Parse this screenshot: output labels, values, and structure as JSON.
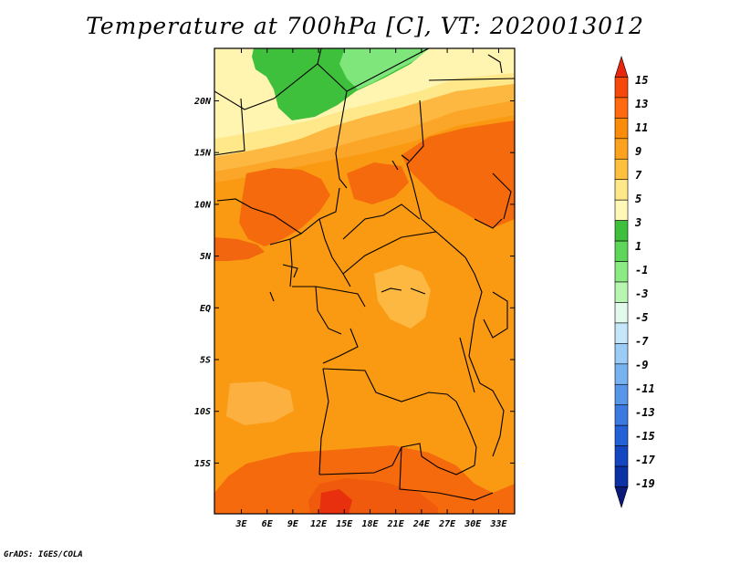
{
  "title": "Temperature at 700hPa [C], VT: 2020013012",
  "credit": "GrADS: IGES/COLA",
  "map": {
    "lat_labels": [
      "20N",
      "15N",
      "10N",
      "5N",
      "EQ",
      "5S",
      "10S",
      "15S"
    ],
    "lon_labels": [
      "3E",
      "6E",
      "9E",
      "12E",
      "15E",
      "18E",
      "21E",
      "24E",
      "27E",
      "30E",
      "33E"
    ]
  },
  "colorbar": {
    "labels": [
      "15",
      "13",
      "11",
      "9",
      "7",
      "5",
      "3",
      "1",
      "-1",
      "-3",
      "-5",
      "-7",
      "-9",
      "-11",
      "-13",
      "-15",
      "-17",
      "-19"
    ],
    "colors": [
      "#e8250e",
      "#f5480a",
      "#ff6a0f",
      "#fa8c0a",
      "#fca21e",
      "#ffc040",
      "#ffe88a",
      "#fff8b8",
      "#3ec03c",
      "#5ed65a",
      "#8ceb82",
      "#b8f5b0",
      "#e2faec",
      "#c6e6fa",
      "#9ccbf6",
      "#78b2f0",
      "#5896ea",
      "#3c7ae2",
      "#2460d6",
      "#1446c2",
      "#0c30a6",
      "#0a1a78"
    ]
  }
}
